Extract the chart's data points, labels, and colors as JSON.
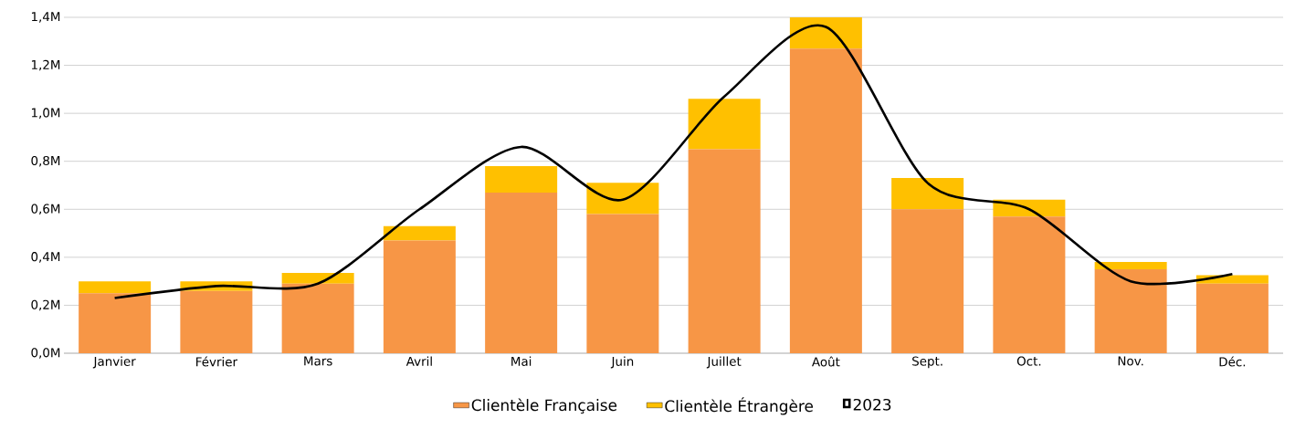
{
  "chart_data": {
    "type": "bar",
    "stacked": true,
    "categories": [
      "Janvier",
      "Février",
      "Mars",
      "Avril",
      "Mai",
      "Juin",
      "Juillet",
      "Août",
      "Sept.",
      "Oct.",
      "Nov.",
      "Déc."
    ],
    "series": [
      {
        "name": "Clientèle Française",
        "color": "#f79646",
        "values": [
          0.25,
          0.26,
          0.29,
          0.47,
          0.67,
          0.58,
          0.85,
          1.27,
          0.6,
          0.57,
          0.35,
          0.29
        ]
      },
      {
        "name": "Clientèle Étrangère",
        "color": "#ffc000",
        "values": [
          0.05,
          0.04,
          0.045,
          0.06,
          0.11,
          0.13,
          0.21,
          0.13,
          0.13,
          0.07,
          0.03,
          0.035
        ]
      },
      {
        "name": "2023",
        "type": "line",
        "color": "#000000",
        "line_style": "solid",
        "marker": "none",
        "values": [
          0.23,
          0.28,
          0.29,
          0.6,
          0.86,
          0.64,
          1.07,
          1.36,
          0.71,
          0.6,
          0.3,
          0.33
        ]
      }
    ],
    "ylim": [
      0,
      1.4
    ],
    "yticks": [
      {
        "value": 0,
        "label": "0,0M"
      },
      {
        "value": 0.2,
        "label": "0,2M"
      },
      {
        "value": 0.4,
        "label": "0,4M"
      },
      {
        "value": 0.6,
        "label": "0,6M"
      },
      {
        "value": 0.8,
        "label": "0,8M"
      },
      {
        "value": 1.0,
        "label": "1,0M"
      },
      {
        "value": 1.2,
        "label": "1,2M"
      },
      {
        "value": 1.4,
        "label": "1,4M"
      }
    ],
    "grid": "y",
    "legend": "bottom"
  }
}
